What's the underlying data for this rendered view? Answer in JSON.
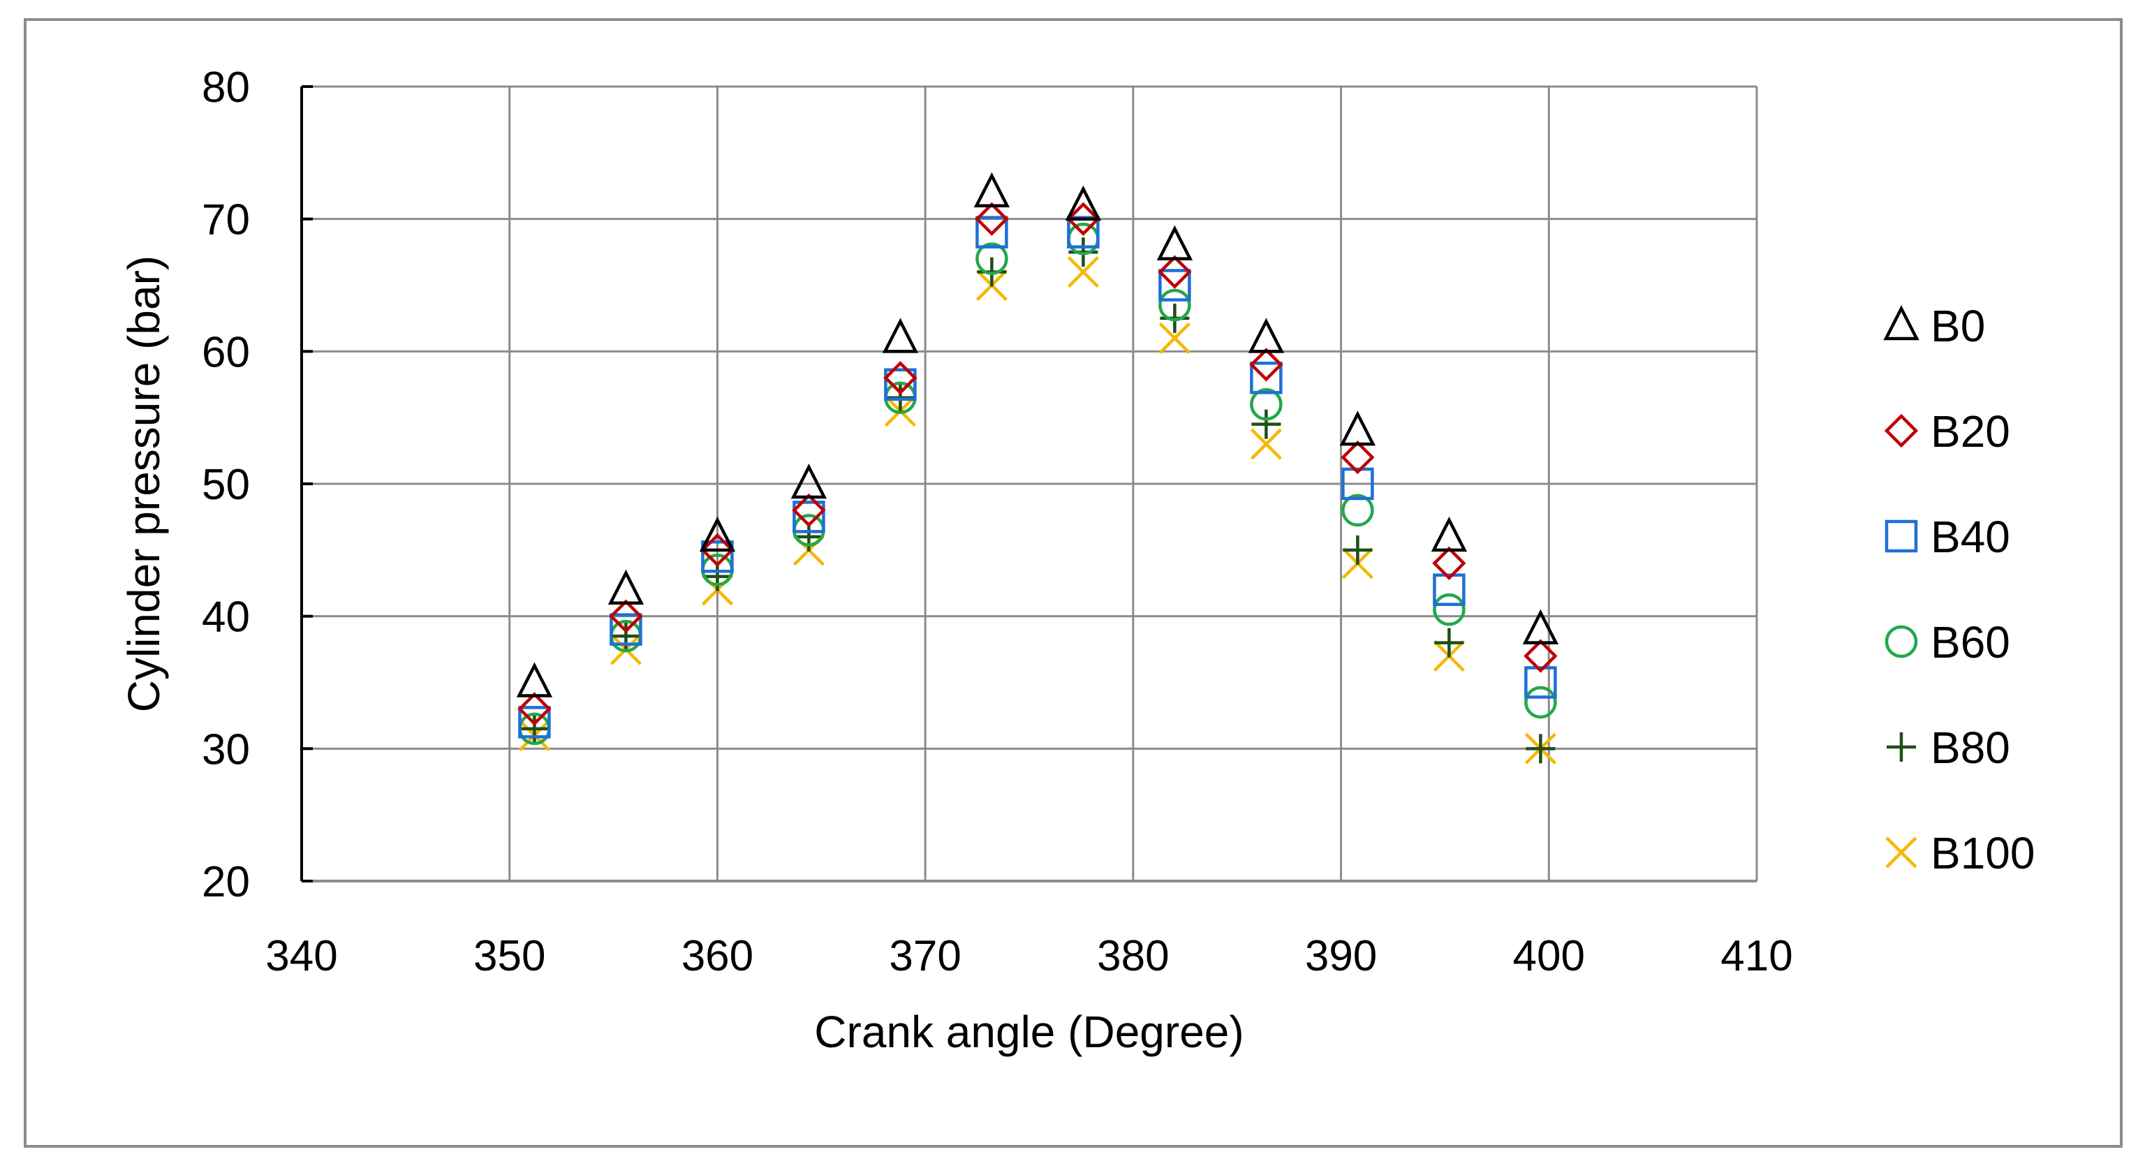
{
  "chart_data": {
    "type": "scatter",
    "title": "",
    "xlabel": "Crank angle (Degree)",
    "ylabel": "Cylinder pressure (bar)",
    "xlim": [
      340,
      410
    ],
    "ylim": [
      20,
      80
    ],
    "xticks": [
      340,
      350,
      360,
      370,
      380,
      390,
      400,
      410
    ],
    "yticks": [
      20,
      30,
      40,
      50,
      60,
      70,
      80
    ],
    "grid": true,
    "legend_position": "right",
    "x": [
      351.2,
      355.6,
      360,
      364.4,
      368.8,
      373.2,
      377.6,
      382,
      386.4,
      390.8,
      395.2,
      399.6
    ],
    "series": [
      {
        "name": "B0",
        "marker": "triangle",
        "color": "#000000",
        "values": [
          35,
          42,
          46,
          50,
          61,
          72,
          71,
          68,
          61,
          54,
          46,
          39
        ]
      },
      {
        "name": "B20",
        "marker": "diamond",
        "color": "#c00000",
        "values": [
          33,
          40,
          45,
          48,
          58,
          70,
          70,
          66,
          59,
          52,
          44,
          37
        ]
      },
      {
        "name": "B40",
        "marker": "square",
        "color": "#1f6fd6",
        "values": [
          32,
          39,
          44.5,
          47.5,
          57.5,
          69,
          69,
          65,
          58,
          50,
          42,
          35
        ]
      },
      {
        "name": "B60",
        "marker": "circle",
        "color": "#22a84a",
        "values": [
          31.5,
          38.5,
          43.5,
          46.5,
          56.5,
          67,
          68.5,
          63.5,
          56,
          48,
          40.5,
          33.5
        ]
      },
      {
        "name": "B80",
        "marker": "plus",
        "color": "#1f4f16",
        "values": [
          31.5,
          38.5,
          43,
          46,
          56.5,
          66,
          67.5,
          62.5,
          54.5,
          45,
          38,
          30
        ]
      },
      {
        "name": "B100",
        "marker": "cross",
        "color": "#f5b800",
        "values": [
          31,
          37.5,
          42,
          45,
          55.5,
          65,
          66,
          61,
          53,
          44,
          37,
          30
        ]
      }
    ]
  }
}
